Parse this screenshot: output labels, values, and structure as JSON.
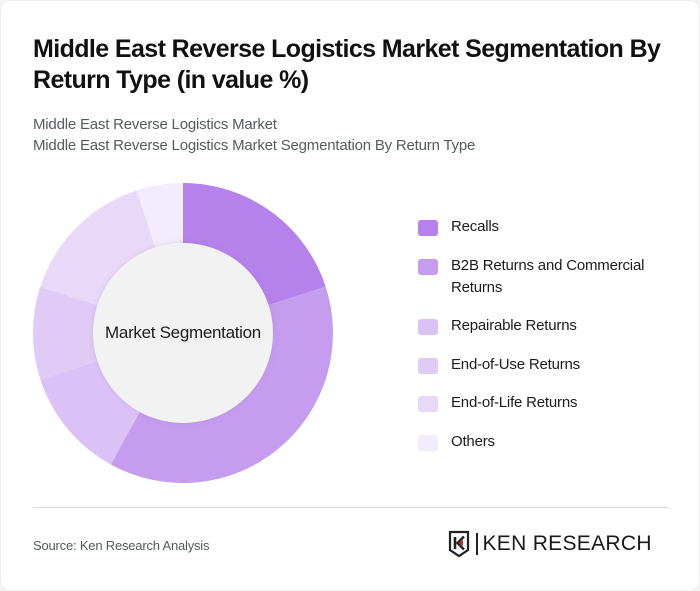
{
  "header": {
    "title": "Middle East Reverse Logistics Market Segmentation By Return Type (in value %)",
    "subtitle_line1": "Middle East Reverse Logistics Market",
    "subtitle_line2": "Middle East Reverse Logistics Market Segmentation By Return Type"
  },
  "chart": {
    "center_label": "Market Segmentation"
  },
  "legend": {
    "items": [
      {
        "label": "Recalls",
        "color": "#b581ea"
      },
      {
        "label": "B2B Returns and Commercial Returns",
        "color": "#c59cee"
      },
      {
        "label": "Repairable Returns",
        "color": "#dbc2f6"
      },
      {
        "label": "End-of-Use Returns",
        "color": "#e0cbf6"
      },
      {
        "label": "End-of-Life Returns",
        "color": "#e8d9f9"
      },
      {
        "label": "Others",
        "color": "#f3ecfc"
      }
    ]
  },
  "footer": {
    "source": "Source: Ken Research Analysis",
    "logo_text": "KEN RESEARCH"
  },
  "chart_data": {
    "type": "pie",
    "subtype": "donut",
    "title": "Middle East Reverse Logistics Market Segmentation By Return Type (in value %)",
    "center_label": "Market Segmentation",
    "categories": [
      "Recalls",
      "B2B Returns and Commercial Returns",
      "Repairable Returns",
      "End-of-Use Returns",
      "End-of-Life Returns",
      "Others"
    ],
    "values": [
      20,
      38,
      12,
      10,
      15,
      5
    ],
    "colors": [
      "#b581ea",
      "#c59cee",
      "#dbc2f6",
      "#e0cbf6",
      "#e8d9f9",
      "#f3ecfc"
    ],
    "unit": "%",
    "legend_position": "right",
    "start_angle": "top, clockwise"
  }
}
